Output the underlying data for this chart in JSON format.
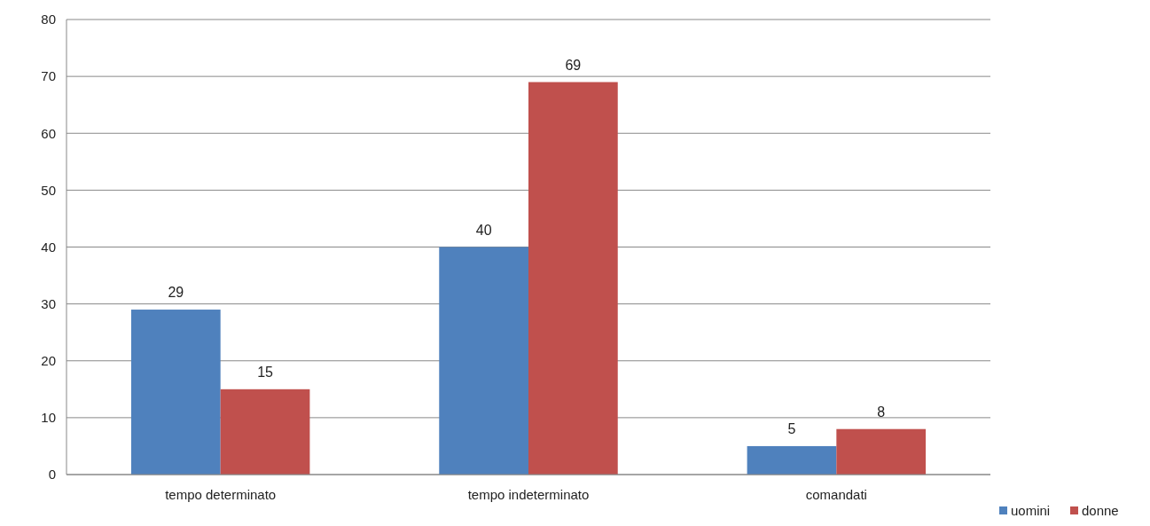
{
  "chart_data": {
    "type": "bar",
    "categories": [
      "tempo determinato",
      "tempo indeterminato",
      "comandati"
    ],
    "series": [
      {
        "name": "uomini",
        "color": "#4f81bd",
        "values": [
          29,
          40,
          5
        ]
      },
      {
        "name": "donne",
        "color": "#c0504d",
        "values": [
          15,
          69,
          8
        ]
      }
    ],
    "ylim": [
      0,
      80
    ],
    "yticks": [
      0,
      10,
      20,
      30,
      40,
      50,
      60,
      70,
      80
    ],
    "grid": "y",
    "data_labels": true,
    "legend": "bottom right"
  }
}
